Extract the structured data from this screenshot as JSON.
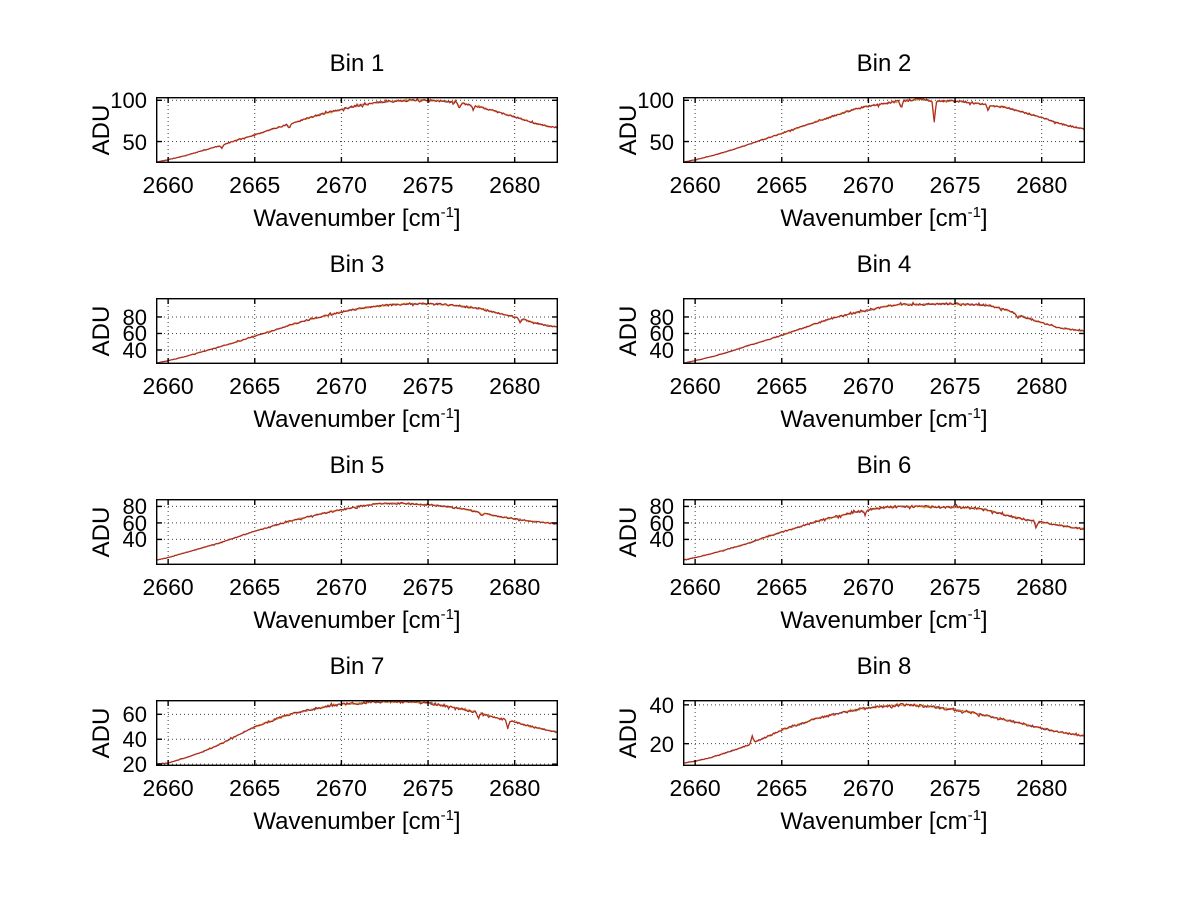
{
  "figure": {
    "background": "#ffffff",
    "description": "MATLAB-style figure with 8 spectral subplots arranged 4 rows x 2 columns"
  },
  "chart_data": {
    "type": "line",
    "layout": "grid-4x2",
    "grid": "dotted",
    "legend": "none",
    "ylabel": "ADU",
    "xlabel_main": "Wavenumber [cm",
    "xlabel_sup": "-1",
    "xlabel_end": "]",
    "xlim": [
      2659.3,
      2682.5
    ],
    "xticks": [
      2660,
      2665,
      2670,
      2675,
      2680
    ],
    "xticklabels": [
      "2660",
      "2665",
      "2670",
      "2675",
      "2680"
    ],
    "line_colors": {
      "top": "#b22222",
      "mid": "#d9a520",
      "under": "#3b6fbf",
      "axis": "#000000",
      "grid": "#444444"
    },
    "subplots": [
      {
        "title": "Bin 1",
        "ylim": [
          24,
          104
        ],
        "ytick_vals": [
          50,
          100
        ],
        "ytick_labels": [
          "50",
          "100"
        ],
        "noise": 1.4,
        "seed": 11,
        "spikes": [
          {
            "x": 2663.1,
            "dy": 4
          },
          {
            "x": 2667.0,
            "dy": 5
          },
          {
            "x": 2676.8,
            "dy": 6
          },
          {
            "x": 2677.6,
            "dy": 5
          }
        ],
        "anchors": [
          [
            2659.3,
            25
          ],
          [
            2660,
            28
          ],
          [
            2661,
            33
          ],
          [
            2662,
            39
          ],
          [
            2663,
            45
          ],
          [
            2664,
            52
          ],
          [
            2665,
            58
          ],
          [
            2666,
            65
          ],
          [
            2667,
            71
          ],
          [
            2668,
            78
          ],
          [
            2669,
            84
          ],
          [
            2670,
            89
          ],
          [
            2671,
            94
          ],
          [
            2672,
            97
          ],
          [
            2673,
            99
          ],
          [
            2674,
            100
          ],
          [
            2675,
            100
          ],
          [
            2676,
            99
          ],
          [
            2677,
            96
          ],
          [
            2678,
            92
          ],
          [
            2679,
            86
          ],
          [
            2680,
            80
          ],
          [
            2681,
            73
          ],
          [
            2682,
            68
          ],
          [
            2682.4,
            67
          ]
        ]
      },
      {
        "title": "Bin 2",
        "ylim": [
          24,
          104
        ],
        "ytick_vals": [
          50,
          100
        ],
        "ytick_labels": [
          "50",
          "100"
        ],
        "noise": 1.4,
        "seed": 22,
        "spikes": [
          {
            "x": 2671.9,
            "dy": 10
          },
          {
            "x": 2673.8,
            "dy": 26
          },
          {
            "x": 2676.9,
            "dy": 6
          }
        ],
        "anchors": [
          [
            2659.3,
            25
          ],
          [
            2660,
            28
          ],
          [
            2661,
            33
          ],
          [
            2662,
            39
          ],
          [
            2663,
            46
          ],
          [
            2664,
            53
          ],
          [
            2665,
            60
          ],
          [
            2666,
            67
          ],
          [
            2667,
            74
          ],
          [
            2668,
            81
          ],
          [
            2669,
            88
          ],
          [
            2670,
            93
          ],
          [
            2671,
            96
          ],
          [
            2672,
            100
          ],
          [
            2673,
            101
          ],
          [
            2674,
            99
          ],
          [
            2675,
            99
          ],
          [
            2676,
            97
          ],
          [
            2677,
            94
          ],
          [
            2678,
            91
          ],
          [
            2679,
            85
          ],
          [
            2680,
            79
          ],
          [
            2681,
            72
          ],
          [
            2682,
            67
          ],
          [
            2682.4,
            66
          ]
        ]
      },
      {
        "title": "Bin 3",
        "ylim": [
          23,
          103
        ],
        "ytick_vals": [
          40,
          60,
          80
        ],
        "ytick_labels": [
          "40",
          "60",
          "80"
        ],
        "noise": 1.3,
        "seed": 33,
        "spikes": [
          {
            "x": 2680.3,
            "dy": 5
          }
        ],
        "anchors": [
          [
            2659.3,
            24
          ],
          [
            2660,
            27
          ],
          [
            2661,
            32
          ],
          [
            2662,
            38
          ],
          [
            2663,
            44
          ],
          [
            2664,
            50
          ],
          [
            2665,
            57
          ],
          [
            2666,
            63
          ],
          [
            2667,
            70
          ],
          [
            2668,
            76
          ],
          [
            2669,
            81
          ],
          [
            2670,
            86
          ],
          [
            2671,
            90
          ],
          [
            2672,
            93
          ],
          [
            2673,
            95
          ],
          [
            2674,
            96
          ],
          [
            2675,
            96
          ],
          [
            2676,
            95
          ],
          [
            2677,
            93
          ],
          [
            2678,
            90
          ],
          [
            2679,
            85
          ],
          [
            2680,
            80
          ],
          [
            2681,
            74
          ],
          [
            2682,
            69
          ],
          [
            2682.4,
            68
          ]
        ]
      },
      {
        "title": "Bin 4",
        "ylim": [
          23,
          103
        ],
        "ytick_vals": [
          40,
          60,
          80
        ],
        "ytick_labels": [
          "40",
          "60",
          "80"
        ],
        "noise": 1.3,
        "seed": 44,
        "spikes": [
          {
            "x": 2678.6,
            "dy": 5
          }
        ],
        "anchors": [
          [
            2659.3,
            24
          ],
          [
            2660,
            27
          ],
          [
            2661,
            32
          ],
          [
            2662,
            38
          ],
          [
            2663,
            45
          ],
          [
            2664,
            51
          ],
          [
            2665,
            58
          ],
          [
            2666,
            65
          ],
          [
            2667,
            72
          ],
          [
            2668,
            79
          ],
          [
            2669,
            84
          ],
          [
            2670,
            88
          ],
          [
            2671,
            93
          ],
          [
            2672,
            95
          ],
          [
            2673,
            95
          ],
          [
            2674,
            96
          ],
          [
            2675,
            96
          ],
          [
            2676,
            95
          ],
          [
            2677,
            94
          ],
          [
            2678,
            88
          ],
          [
            2679,
            80
          ],
          [
            2680,
            73
          ],
          [
            2681,
            67
          ],
          [
            2682,
            64
          ],
          [
            2682.4,
            63
          ]
        ]
      },
      {
        "title": "Bin 5",
        "ylim": [
          9,
          89
        ],
        "ytick_vals": [
          40,
          60,
          80
        ],
        "ytick_labels": [
          "40",
          "60",
          "80"
        ],
        "noise": 1.2,
        "seed": 55,
        "spikes": [
          {
            "x": 2678.1,
            "dy": 4
          }
        ],
        "anchors": [
          [
            2659.3,
            15
          ],
          [
            2660,
            18
          ],
          [
            2661,
            24
          ],
          [
            2662,
            30
          ],
          [
            2663,
            36
          ],
          [
            2664,
            43
          ],
          [
            2665,
            50
          ],
          [
            2666,
            56
          ],
          [
            2667,
            62
          ],
          [
            2668,
            67
          ],
          [
            2669,
            72
          ],
          [
            2670,
            76
          ],
          [
            2671,
            80
          ],
          [
            2672,
            83
          ],
          [
            2673,
            84
          ],
          [
            2674,
            83
          ],
          [
            2675,
            82
          ],
          [
            2676,
            80
          ],
          [
            2677,
            77
          ],
          [
            2678,
            73
          ],
          [
            2679,
            68
          ],
          [
            2680,
            65
          ],
          [
            2681,
            62
          ],
          [
            2682.4,
            59
          ]
        ]
      },
      {
        "title": "Bin 6",
        "ylim": [
          9,
          89
        ],
        "ytick_vals": [
          40,
          60,
          80
        ],
        "ytick_labels": [
          "40",
          "60",
          "80"
        ],
        "noise": 1.5,
        "seed": 66,
        "spikes": [
          {
            "x": 2669.8,
            "dy": 6
          },
          {
            "x": 2679.7,
            "dy": 8
          }
        ],
        "anchors": [
          [
            2659.3,
            15
          ],
          [
            2660,
            18
          ],
          [
            2661,
            23
          ],
          [
            2662,
            29
          ],
          [
            2663,
            35
          ],
          [
            2664,
            42
          ],
          [
            2665,
            49
          ],
          [
            2666,
            55
          ],
          [
            2667,
            62
          ],
          [
            2668,
            67
          ],
          [
            2669,
            72
          ],
          [
            2670,
            76
          ],
          [
            2671,
            79
          ],
          [
            2672,
            80
          ],
          [
            2673,
            80
          ],
          [
            2674,
            79
          ],
          [
            2675,
            79
          ],
          [
            2676,
            78
          ],
          [
            2677,
            75
          ],
          [
            2678,
            69
          ],
          [
            2679,
            64
          ],
          [
            2680,
            61
          ],
          [
            2681,
            57
          ],
          [
            2682,
            54
          ],
          [
            2682.4,
            53
          ]
        ]
      },
      {
        "title": "Bin 7",
        "ylim": [
          18.5,
          71.5
        ],
        "ytick_vals": [
          20,
          40,
          60
        ],
        "ytick_labels": [
          "20",
          "40",
          "60"
        ],
        "noise": 1.1,
        "seed": 77,
        "spikes": [
          {
            "x": 2677.9,
            "dy": 5
          },
          {
            "x": 2679.6,
            "dy": 7
          }
        ],
        "anchors": [
          [
            2659.3,
            20
          ],
          [
            2660,
            21
          ],
          [
            2661,
            25
          ],
          [
            2662,
            30
          ],
          [
            2663,
            36
          ],
          [
            2664,
            43
          ],
          [
            2665,
            50
          ],
          [
            2666,
            55
          ],
          [
            2667,
            60
          ],
          [
            2668,
            63
          ],
          [
            2669,
            66
          ],
          [
            2670,
            68
          ],
          [
            2671,
            69
          ],
          [
            2672,
            70
          ],
          [
            2673,
            70
          ],
          [
            2674,
            70
          ],
          [
            2675,
            69
          ],
          [
            2676,
            67
          ],
          [
            2677,
            64
          ],
          [
            2678,
            61
          ],
          [
            2679,
            57
          ],
          [
            2680,
            54
          ],
          [
            2681,
            50
          ],
          [
            2682,
            47
          ],
          [
            2682.4,
            46
          ]
        ]
      },
      {
        "title": "Bin 8",
        "ylim": [
          8.5,
          42.5
        ],
        "ytick_vals": [
          20,
          40
        ],
        "ytick_labels": [
          "20",
          "40"
        ],
        "noise": 0.8,
        "seed": 88,
        "spikes": [
          {
            "x": 2663.3,
            "dy": -4
          }
        ],
        "anchors": [
          [
            2659.3,
            10
          ],
          [
            2660,
            11
          ],
          [
            2661,
            13
          ],
          [
            2662,
            16
          ],
          [
            2663,
            19
          ],
          [
            2664,
            23
          ],
          [
            2665,
            27
          ],
          [
            2666,
            30
          ],
          [
            2667,
            33
          ],
          [
            2668,
            35
          ],
          [
            2669,
            37
          ],
          [
            2670,
            38.5
          ],
          [
            2671,
            39.5
          ],
          [
            2672,
            40
          ],
          [
            2673,
            39.5
          ],
          [
            2674,
            38.5
          ],
          [
            2675,
            37.5
          ],
          [
            2676,
            36
          ],
          [
            2677,
            34
          ],
          [
            2678,
            32
          ],
          [
            2679,
            30
          ],
          [
            2680,
            28
          ],
          [
            2681,
            26
          ],
          [
            2682.4,
            24
          ]
        ]
      }
    ]
  }
}
